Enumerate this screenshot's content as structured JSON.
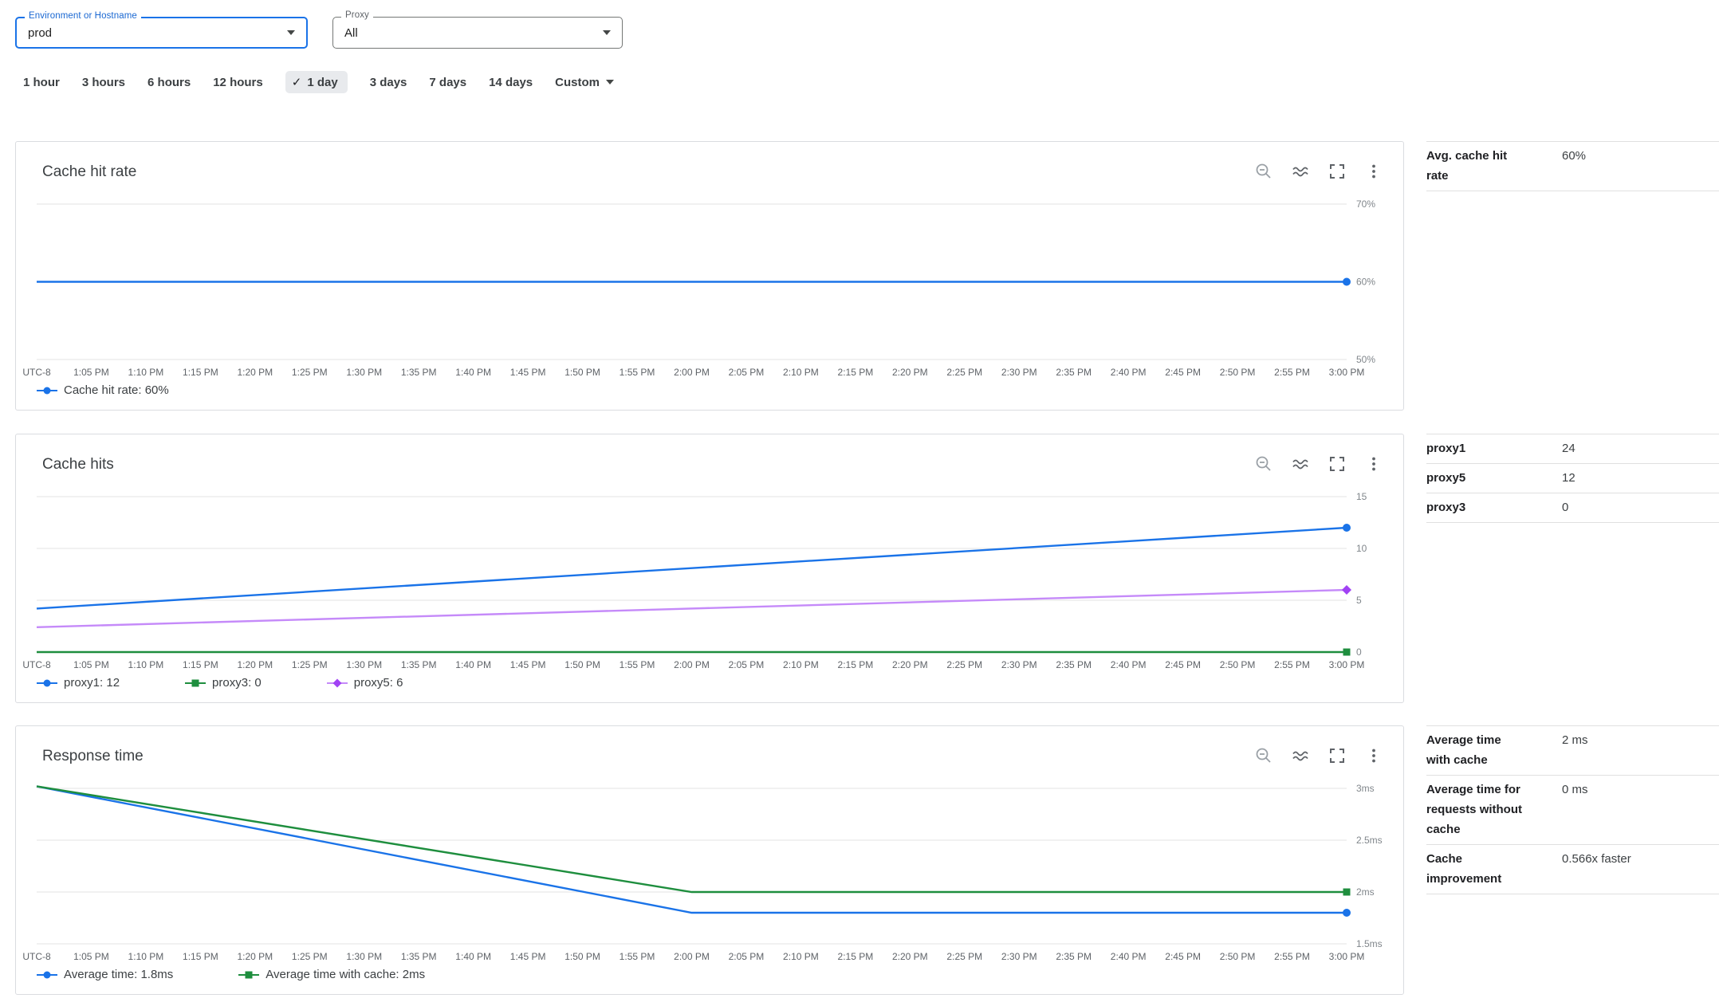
{
  "filters": {
    "environment": {
      "label": "Environment or Hostname",
      "value": "prod"
    },
    "proxy": {
      "label": "Proxy",
      "value": "All"
    }
  },
  "time_ranges": {
    "options": [
      "1 hour",
      "3 hours",
      "6 hours",
      "12 hours",
      "1 day",
      "3 days",
      "7 days",
      "14 days"
    ],
    "selected": "1 day",
    "custom_label": "Custom"
  },
  "icons": {
    "check": "✓"
  },
  "x_ticks": [
    "UTC-8",
    "1:05 PM",
    "1:10 PM",
    "1:15 PM",
    "1:20 PM",
    "1:25 PM",
    "1:30 PM",
    "1:35 PM",
    "1:40 PM",
    "1:45 PM",
    "1:50 PM",
    "1:55 PM",
    "2:00 PM",
    "2:05 PM",
    "2:10 PM",
    "2:15 PM",
    "2:20 PM",
    "2:25 PM",
    "2:30 PM",
    "2:35 PM",
    "2:40 PM",
    "2:45 PM",
    "2:50 PM",
    "2:55 PM",
    "3:00 PM"
  ],
  "cards": [
    {
      "title": "Cache hit rate",
      "stats": [
        {
          "label": "Avg. cache hit rate",
          "value": "60%"
        }
      ]
    },
    {
      "title": "Cache hits",
      "stats": [
        {
          "label": "proxy1",
          "value": "24"
        },
        {
          "label": "proxy5",
          "value": "12"
        },
        {
          "label": "proxy3",
          "value": "0"
        }
      ]
    },
    {
      "title": "Response time",
      "stats": [
        {
          "label": "Average time with cache",
          "value": "2 ms"
        },
        {
          "label": "Average time for requests without cache",
          "value": "0 ms"
        },
        {
          "label": "Cache improvement",
          "value": "0.566x faster"
        }
      ]
    }
  ],
  "chart_data": [
    {
      "type": "line",
      "title": "Cache hit rate",
      "xlabel": "",
      "ylabel": "",
      "ylim": [
        50,
        70
      ],
      "x_max": 24,
      "grid": true,
      "yticks": [
        {
          "value": 70,
          "label": "70%"
        },
        {
          "value": 60,
          "label": "60%"
        },
        {
          "value": 50,
          "label": "50%"
        }
      ],
      "series": [
        {
          "name": "Cache hit rate",
          "color": "#1a73e8",
          "marker": "circle",
          "points": [
            [
              0,
              60
            ],
            [
              24,
              60
            ]
          ]
        }
      ],
      "legend": [
        {
          "label": "Cache hit rate: 60%",
          "color": "#1a73e8",
          "marker": "circle"
        }
      ]
    },
    {
      "type": "line",
      "title": "Cache hits",
      "xlabel": "",
      "ylabel": "",
      "ylim": [
        0,
        15
      ],
      "x_max": 24,
      "grid": true,
      "yticks": [
        {
          "value": 15,
          "label": "15"
        },
        {
          "value": 10,
          "label": "10"
        },
        {
          "value": 5,
          "label": "5"
        },
        {
          "value": 0,
          "label": "0"
        }
      ],
      "series": [
        {
          "name": "proxy1",
          "color": "#1a73e8",
          "marker": "circle",
          "points": [
            [
              0,
              4.2
            ],
            [
              24,
              12
            ]
          ]
        },
        {
          "name": "proxy3",
          "color": "#1e8e3e",
          "marker": "square",
          "points": [
            [
              0,
              0
            ],
            [
              24,
              0
            ]
          ]
        },
        {
          "name": "proxy5",
          "color": "#c58af9",
          "marker_color": "#a142f4",
          "marker": "diamond",
          "points": [
            [
              0,
              2.4
            ],
            [
              24,
              6
            ]
          ]
        }
      ],
      "legend": [
        {
          "label": "proxy1: 12",
          "color": "#1a73e8",
          "marker": "circle"
        },
        {
          "label": "proxy3: 0",
          "color": "#1e8e3e",
          "marker": "square"
        },
        {
          "label": "proxy5: 6",
          "color": "#c58af9",
          "marker_color": "#a142f4",
          "marker": "diamond"
        }
      ]
    },
    {
      "type": "line",
      "title": "Response time",
      "xlabel": "",
      "ylabel": "",
      "ylim": [
        1.5,
        3
      ],
      "x_max": 24,
      "grid": true,
      "yticks": [
        {
          "value": 3,
          "label": "3ms"
        },
        {
          "value": 2.5,
          "label": "2.5ms"
        },
        {
          "value": 2,
          "label": "2ms"
        },
        {
          "value": 1.5,
          "label": "1.5ms"
        }
      ],
      "series": [
        {
          "name": "Average time",
          "color": "#1a73e8",
          "marker": "circle",
          "points": [
            [
              0,
              3.02
            ],
            [
              12,
              1.8
            ],
            [
              24,
              1.8
            ]
          ]
        },
        {
          "name": "Average time with cache",
          "color": "#1e8e3e",
          "marker": "square",
          "points": [
            [
              0,
              3.02
            ],
            [
              12,
              2.0
            ],
            [
              24,
              2.0
            ]
          ]
        }
      ],
      "legend": [
        {
          "label": "Average time: 1.8ms",
          "color": "#1a73e8",
          "marker": "circle"
        },
        {
          "label": "Average time with cache: 2ms",
          "color": "#1e8e3e",
          "marker": "square"
        }
      ]
    }
  ]
}
